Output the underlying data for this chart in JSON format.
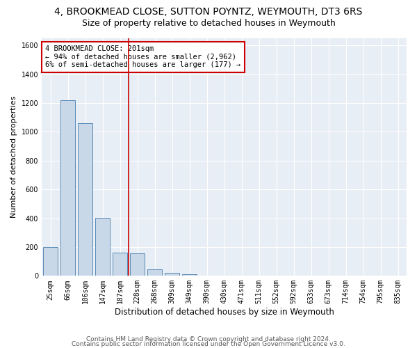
{
  "title1": "4, BROOKMEAD CLOSE, SUTTON POYNTZ, WEYMOUTH, DT3 6RS",
  "title2": "Size of property relative to detached houses in Weymouth",
  "xlabel": "Distribution of detached houses by size in Weymouth",
  "ylabel": "Number of detached properties",
  "categories": [
    "25sqm",
    "66sqm",
    "106sqm",
    "147sqm",
    "187sqm",
    "228sqm",
    "268sqm",
    "309sqm",
    "349sqm",
    "390sqm",
    "430sqm",
    "471sqm",
    "511sqm",
    "552sqm",
    "592sqm",
    "633sqm",
    "673sqm",
    "714sqm",
    "754sqm",
    "795sqm",
    "835sqm"
  ],
  "values": [
    200,
    1220,
    1060,
    405,
    160,
    155,
    45,
    20,
    12,
    0,
    0,
    0,
    0,
    0,
    0,
    0,
    0,
    0,
    0,
    0,
    0
  ],
  "bar_color": "#c8d8e8",
  "bar_edge_color": "#5a8ab5",
  "vline_x": 4.5,
  "vline_color": "#cc0000",
  "annotation_text": "4 BROOKMEAD CLOSE: 201sqm\n← 94% of detached houses are smaller (2,962)\n6% of semi-detached houses are larger (177) →",
  "annotation_box_color": "#ffffff",
  "annotation_box_edge": "#cc0000",
  "ylim": [
    0,
    1650
  ],
  "yticks": [
    0,
    200,
    400,
    600,
    800,
    1000,
    1200,
    1400,
    1600
  ],
  "footer1": "Contains HM Land Registry data © Crown copyright and database right 2024.",
  "footer2": "Contains public sector information licensed under the Open Government Licence v3.0.",
  "bg_color": "#ffffff",
  "plot_bg_color": "#e8eef5",
  "grid_color": "#ffffff",
  "title1_fontsize": 10,
  "title2_fontsize": 9,
  "xlabel_fontsize": 8.5,
  "ylabel_fontsize": 8,
  "tick_fontsize": 7,
  "footer_fontsize": 6.5,
  "annot_fontsize": 7.5
}
